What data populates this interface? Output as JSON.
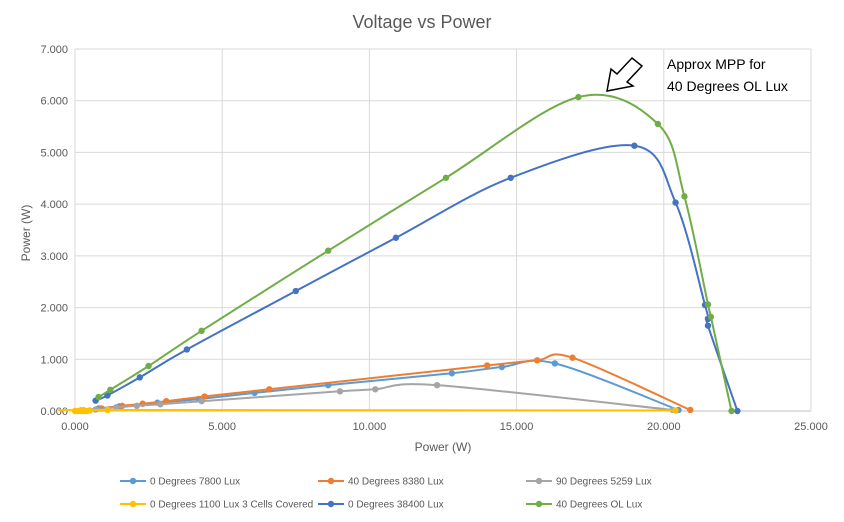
{
  "chart_data": {
    "type": "scatter",
    "title": "Voltage vs Power",
    "xlabel": "Power (W)",
    "ylabel": "Power (W)",
    "xlim": [
      0,
      25
    ],
    "ylim": [
      0,
      7
    ],
    "x_ticks": [
      "0.000",
      "5.000",
      "10.000",
      "15.000",
      "20.000",
      "25.000"
    ],
    "y_ticks": [
      "0.000",
      "1.000",
      "2.000",
      "3.000",
      "4.000",
      "5.000",
      "6.000",
      "7.000"
    ],
    "grid": true,
    "legend_position": "bottom",
    "annotation": {
      "lines": [
        "Approx MPP for",
        "40 Degrees OL Lux"
      ]
    },
    "series": [
      {
        "name": "0 Degrees 7800 Lux",
        "color": "#5B9BD5",
        "x": [
          0.2,
          0.8,
          1.5,
          2.8,
          4.2,
          6.1,
          8.6,
          12.8,
          14.5,
          16.3,
          20.5
        ],
        "y": [
          0.01,
          0.05,
          0.09,
          0.16,
          0.23,
          0.35,
          0.5,
          0.73,
          0.85,
          0.92,
          0.02
        ]
      },
      {
        "name": "40 Degrees 8380 Lux",
        "color": "#ED7D31",
        "x": [
          0.3,
          0.9,
          1.6,
          2.3,
          3.1,
          4.4,
          6.6,
          14.0,
          15.7,
          16.9,
          20.9
        ],
        "y": [
          0.01,
          0.05,
          0.1,
          0.14,
          0.19,
          0.28,
          0.42,
          0.88,
          0.98,
          1.03,
          0.02
        ]
      },
      {
        "name": "90 Degrees 5259 Lux",
        "color": "#A5A5A5",
        "x": [
          0.2,
          0.7,
          1.4,
          2.1,
          2.9,
          4.3,
          9.0,
          10.2,
          12.3,
          20.3
        ],
        "y": [
          0.01,
          0.03,
          0.07,
          0.1,
          0.13,
          0.19,
          0.38,
          0.42,
          0.5,
          0.02
        ]
      },
      {
        "name": "0 Degrees 1100 Lux 3 Cells Covered",
        "color": "#FFC000",
        "x": [
          0.0,
          0.1,
          0.2,
          0.3,
          0.4,
          0.5,
          1.1,
          20.4
        ],
        "y": [
          0.0,
          0.0,
          0.0,
          0.0,
          0.0,
          0.01,
          0.02,
          0.01
        ]
      },
      {
        "name": "0 Degrees 38400 Lux",
        "color": "#4472C4",
        "x": [
          0.7,
          1.1,
          2.2,
          3.8,
          7.5,
          10.9,
          14.8,
          19.0,
          20.4,
          21.4,
          21.5,
          21.5,
          22.5
        ],
        "y": [
          0.2,
          0.3,
          0.65,
          1.19,
          2.32,
          3.35,
          4.51,
          5.13,
          4.03,
          2.05,
          1.78,
          1.65,
          0.0
        ]
      },
      {
        "name": "40 Degrees OL Lux",
        "color": "#70AD47",
        "x": [
          0.8,
          1.2,
          2.5,
          4.3,
          8.6,
          12.6,
          17.1,
          19.8,
          20.7,
          21.5,
          21.6,
          22.3
        ],
        "y": [
          0.27,
          0.41,
          0.87,
          1.55,
          3.1,
          4.51,
          6.07,
          5.55,
          4.15,
          2.06,
          1.82,
          0.0
        ]
      }
    ]
  }
}
